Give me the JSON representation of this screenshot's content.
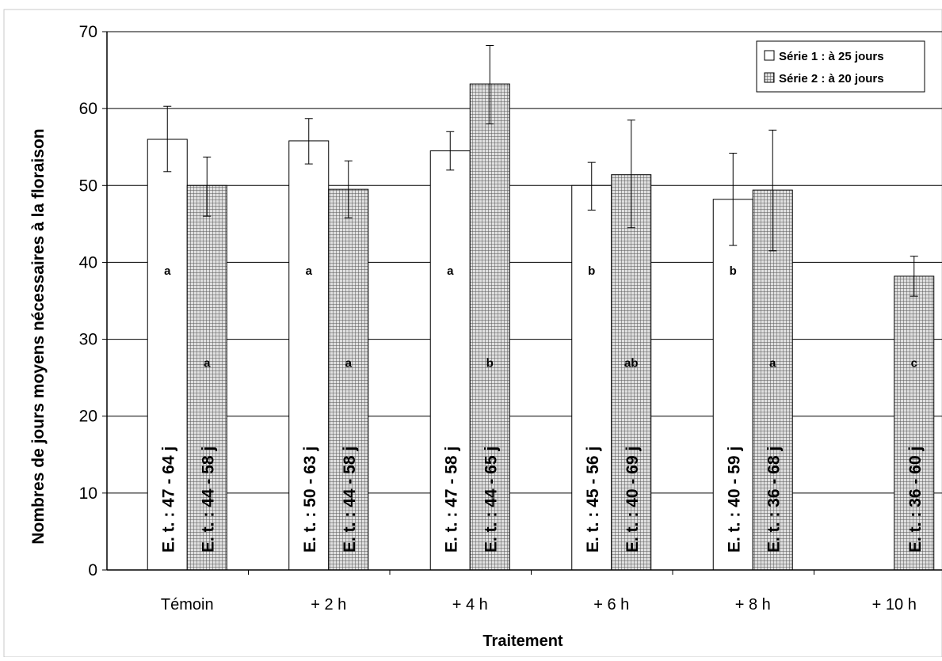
{
  "chart_data": {
    "type": "bar",
    "title": "",
    "xlabel": "Traitement",
    "ylabel": "Nombres de jours moyens nécessaires à la floraison",
    "ylim": [
      0,
      70
    ],
    "yticks": [
      "0",
      "10",
      "20",
      "30",
      "40",
      "50",
      "60",
      "70"
    ],
    "grid": true,
    "legend_position": "top-right",
    "categories": [
      "Témoin",
      "+ 2 h",
      "+ 4 h",
      "+ 6 h",
      "+ 8 h",
      "+ 10 h"
    ],
    "series": [
      {
        "name": "Série 1 : à 25 jours",
        "pattern": "white",
        "values": [
          56,
          55.8,
          54.5,
          50,
          48.2,
          null
        ],
        "error_low": [
          51.8,
          52.8,
          52,
          46.8,
          42.2,
          null
        ],
        "error_high": [
          60.3,
          58.7,
          57,
          53,
          54.2,
          null
        ],
        "letters": [
          "a",
          "a",
          "a",
          "b",
          "b",
          null
        ],
        "range_labels": [
          "E. t. : 47 - 64 j",
          "E. t. : 50 - 63 j",
          "E. t. : 47 - 58 j",
          "E. t. : 45 - 56 j",
          "E. t. : 40 - 59 j",
          null
        ]
      },
      {
        "name": "Série 2 : à 20 jours",
        "pattern": "grid",
        "values": [
          50,
          49.5,
          63.2,
          51.4,
          49.4,
          38.2
        ],
        "error_low": [
          46,
          45.8,
          58,
          44.5,
          41.5,
          35.6
        ],
        "error_high": [
          53.7,
          53.2,
          68.2,
          58.5,
          57.2,
          40.8
        ],
        "letters": [
          "a",
          "a",
          "b",
          "ab",
          "a",
          "c"
        ],
        "range_labels": [
          "E. t. : 44 - 58 j",
          "E. t. : 44 - 58 j",
          "E. t. : 44 - 65 j",
          "E. t. : 40 - 69 j",
          "E. t. : 36 - 68 j",
          "E. t. : 36 - 60 j"
        ]
      }
    ],
    "colors": {
      "frame": "#000000",
      "series1_fill": "#ffffff",
      "series2_fill": "#d9d9d9",
      "grid": "#000000"
    }
  }
}
